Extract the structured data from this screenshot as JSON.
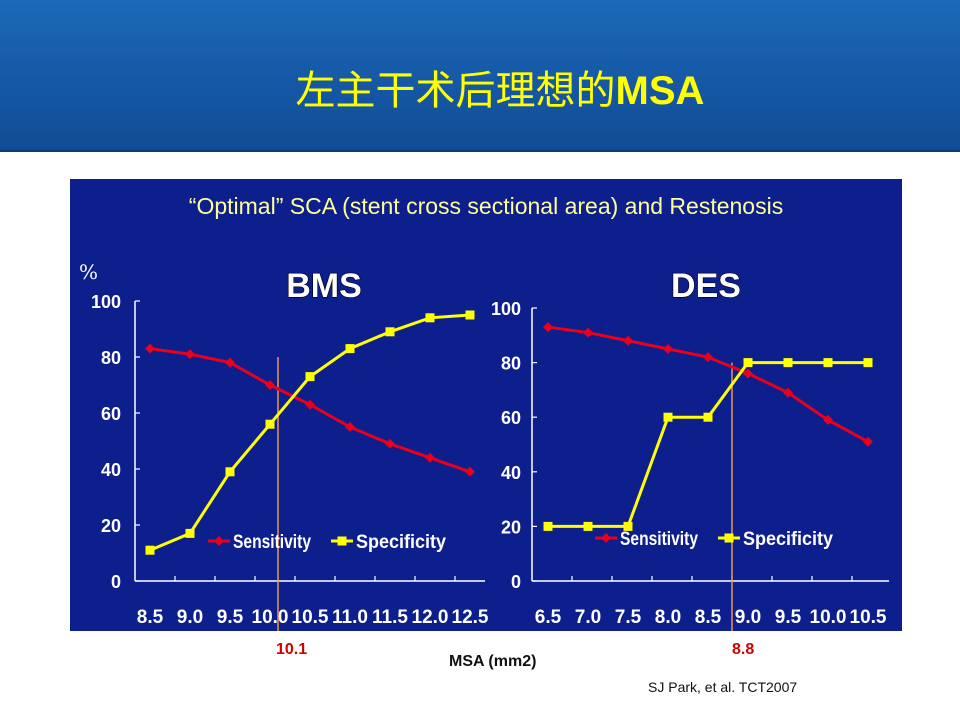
{
  "slide": {
    "title_prefix": "左主干术后理想的",
    "title_suffix": "MSA",
    "panel_heading": "“Optimal” SCA (stent cross sectional area) and Restenosis",
    "percent_sign": "%",
    "cutoff_bms": "10.1",
    "cutoff_des": "8.8",
    "x_axis_title": "MSA (mm2)",
    "source": "SJ Park, et al. TCT2007"
  },
  "colors": {
    "header_bg": "#1558a6",
    "panel_bg": "#0d1f8c",
    "title_text": "#ffff00",
    "sensitivity": "#e8001c",
    "specificity": "#ffff00",
    "cutoff_line": "#e8955a",
    "cutoff_text": "#d00000"
  },
  "chart_data": [
    {
      "type": "line",
      "title": "BMS",
      "categories": [
        "8.5",
        "9.0",
        "9.5",
        "10.0",
        "10.5",
        "11.0",
        "11.5",
        "12.0",
        "12.5"
      ],
      "ylim": [
        0,
        100
      ],
      "yticks": [
        "0",
        "20",
        "40",
        "60",
        "80",
        "100"
      ],
      "series": [
        {
          "name": "Sensitivity",
          "values": [
            83,
            81,
            78,
            70,
            63,
            55,
            49,
            44,
            39
          ]
        },
        {
          "name": "Specificity",
          "values": [
            11,
            17,
            39,
            56,
            73,
            83,
            89,
            94,
            95
          ]
        }
      ],
      "cutoff": 10.1,
      "legend": "bottom"
    },
    {
      "type": "line",
      "title": "DES",
      "categories": [
        "6.5",
        "7.0",
        "7.5",
        "8.0",
        "8.5",
        "9.0",
        "9.5",
        "10.0",
        "10.5"
      ],
      "ylim": [
        0,
        100
      ],
      "yticks": [
        "0",
        "20",
        "40",
        "60",
        "80",
        "100"
      ],
      "series": [
        {
          "name": "Sensitivity",
          "values": [
            93,
            91,
            88,
            85,
            82,
            76,
            69,
            59,
            51
          ]
        },
        {
          "name": "Specificity",
          "values": [
            20,
            20,
            20,
            60,
            60,
            80,
            80,
            80,
            80
          ]
        }
      ],
      "cutoff": 8.8,
      "legend": "bottom"
    }
  ]
}
